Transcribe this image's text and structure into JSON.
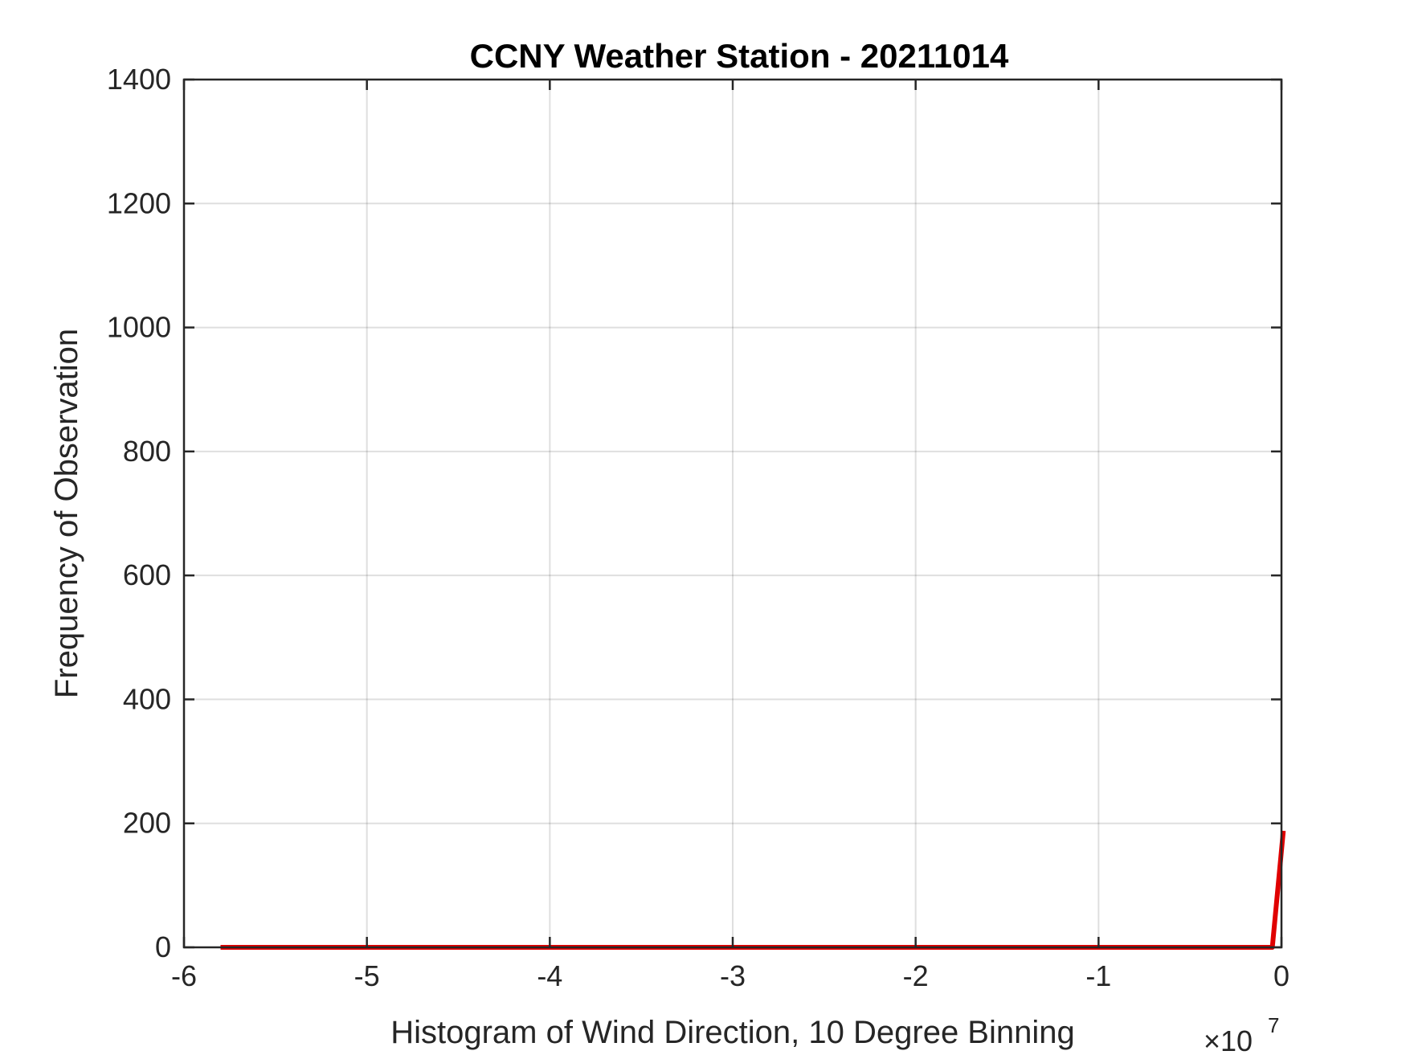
{
  "chart_data": {
    "type": "line",
    "title": "CCNY Weather Station - 20211014",
    "xlabel": "Histogram of Wind Direction, 10 Degree Binning",
    "ylabel": "Frequency of Observation",
    "x_exponent_label": {
      "base": "×10",
      "power": "7"
    },
    "xlim": [
      -6,
      0
    ],
    "ylim": [
      0,
      1400
    ],
    "x_ticks": [
      -6,
      -5,
      -4,
      -3,
      -2,
      -1,
      0
    ],
    "x_tick_labels": [
      "-6",
      "-5",
      "-4",
      "-3",
      "-2",
      "-1",
      "0"
    ],
    "y_ticks": [
      0,
      200,
      400,
      600,
      800,
      1000,
      1200,
      1400
    ],
    "y_tick_labels": [
      "0",
      "200",
      "400",
      "600",
      "800",
      "1000",
      "1200",
      "1400"
    ],
    "grid": true,
    "series": [
      {
        "color": "#e00000",
        "x": [
          -5.8,
          -0.05,
          0.01
        ],
        "y": [
          0,
          0,
          188
        ]
      }
    ]
  }
}
